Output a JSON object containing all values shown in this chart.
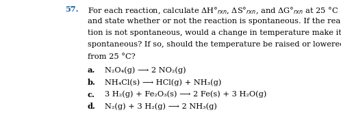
{
  "background_color": "#ffffff",
  "text_color": "#000000",
  "number_color": "#1a5fa8",
  "fig_width": 4.98,
  "fig_height": 1.77,
  "dpi": 100,
  "number": "57.",
  "line1": "For each reaction, calculate ΔH°$_{rxn}$, ΔS°$_{rxn}$, and ΔG°$_{rxn}$ at 25 °C",
  "line2": "and state whether or not the reaction is spontaneous. If the reac-",
  "line3": "tion is not spontaneous, would a change in temperature make it",
  "line4": "spontaneous? If so, should the temperature be raised or lowered",
  "line5": "from 25 °C?",
  "item_a_label": "a.",
  "item_a": "N₂O₄(ᴨ) ⟶ 2 NO₂(ᴨ)",
  "item_b_label": "b.",
  "item_b": "NH₄Cl(ₛ) ⟶ HCl(ᴨ) + NH₃(ᴨ)",
  "item_c_label": "c.",
  "item_c": "3 H₂(ᴨ) + Fe₂O₃(ₛ) ⟶ 2 Fe(ₛ) + 3 H₂O(ᴨ)",
  "item_d_label": "d.",
  "item_d": "N₂(ᴨ) + 3 H₂(ᴨ) ⟶ 2 NH₃(ᴨ)",
  "item_a_plain": "N₂O₄(g) ⟶ 2 NO₂(g)",
  "item_b_plain": "NH₄Cl(s) ⟶ HCl(g) + NH₃(g)",
  "item_c_plain": "3 H₂(g) + Fe₂O₃(s) ⟶ 2 Fe(s) + 3 H₂O(g)",
  "item_d_plain": "N₂(g) + 3 H₂(g) ⟶ 2 NH₃(g)"
}
